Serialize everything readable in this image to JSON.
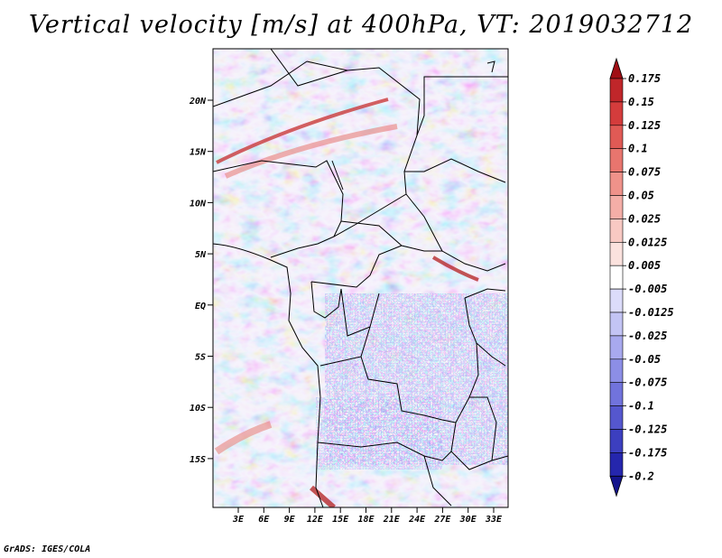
{
  "title": "Vertical velocity [m/s] at 400hPa, VT: 2019032712",
  "credit": "GrADS: IGES/COLA",
  "map": {
    "lat_ticks": [
      "20N",
      "15N",
      "10N",
      "5N",
      "EQ",
      "5S",
      "10S",
      "15S"
    ],
    "lon_ticks": [
      "3E",
      "6E",
      "9E",
      "12E",
      "15E",
      "18E",
      "21E",
      "24E",
      "27E",
      "30E",
      "33E"
    ]
  },
  "colorbar": {
    "labels": [
      "0.175",
      "0.15",
      "0.125",
      "0.1",
      "0.075",
      "0.05",
      "0.025",
      "0.0125",
      "0.005",
      "-0.005",
      "-0.0125",
      "-0.025",
      "-0.05",
      "-0.075",
      "-0.1",
      "-0.125",
      "-0.175",
      "-0.2"
    ],
    "colors": [
      "#a00f15",
      "#c0262a",
      "#d43c3c",
      "#e05a55",
      "#e8756e",
      "#ef928a",
      "#f4aea7",
      "#f8c9c3",
      "#fbe2de",
      "#ffffff",
      "#dcdcfa",
      "#c3c4f4",
      "#a8a9ee",
      "#8c8ee6",
      "#7173dc",
      "#5557ce",
      "#3c3fbf",
      "#2526ad",
      "#14148c"
    ]
  }
}
